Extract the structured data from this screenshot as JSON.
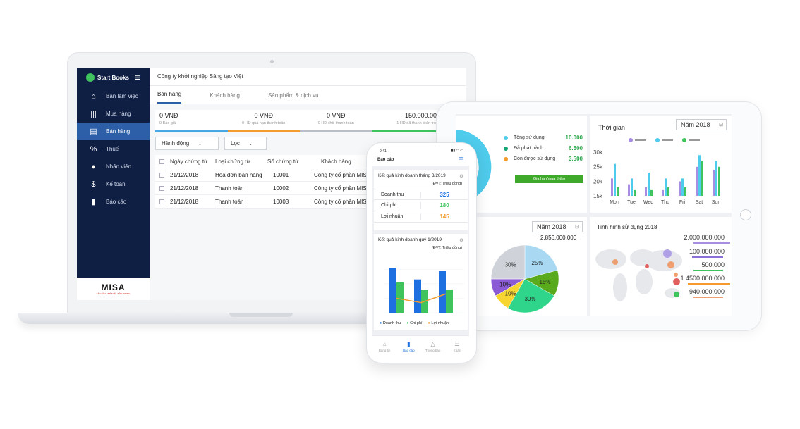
{
  "laptop": {
    "sidebar": {
      "brand": "Start Books",
      "items": [
        {
          "label": "Bàn làm việc",
          "icon": "home-icon"
        },
        {
          "label": "Mua hàng",
          "icon": "barcode-icon"
        },
        {
          "label": "Bán hàng",
          "icon": "invoice-icon",
          "active": true
        },
        {
          "label": "Thuế",
          "icon": "percent-icon"
        },
        {
          "label": "Nhân viên",
          "icon": "person-icon"
        },
        {
          "label": "Kế toán",
          "icon": "dollar-doc-icon"
        },
        {
          "label": "Báo cáo",
          "icon": "bar-chart-icon"
        }
      ],
      "footer_logo": "MISA",
      "footer_tagline": "TẬN TÂM · TRÍ TUỆ · TÔN TRỌNG"
    },
    "company": "Công ty khởi nghiệp Sáng tạo Việt",
    "tabs": [
      "Bán hàng",
      "Khách hàng",
      "Sản phẩm & dịch vụ"
    ],
    "stats": [
      {
        "value": "0 VNĐ",
        "label": "0 Báo giá",
        "color": "#47a8e5"
      },
      {
        "value": "0 VNĐ",
        "label": "0 HĐ quá hạn thanh toán",
        "color": "#f39b2e"
      },
      {
        "value": "0 VNĐ",
        "label": "0 HĐ chờ thanh toán",
        "color": "#b9bec7"
      },
      {
        "value": "150.000.000",
        "label": "1 HĐ đã thanh toán trong",
        "color": "#3ec35d"
      }
    ],
    "toolbar": {
      "action": "Hành động",
      "filter": "Lọc"
    },
    "table": {
      "headers": [
        "Ngày chứng từ",
        "Loại chứng từ",
        "Số chứng từ",
        "Khách hàng"
      ],
      "rows": [
        [
          "21/12/2018",
          "Hóa đơn bán hàng",
          "10001",
          "Công ty cổ phần MISA"
        ],
        [
          "21/12/2018",
          "Thanh toán",
          "10002",
          "Công ty cổ phần MISA"
        ],
        [
          "21/12/2018",
          "Thanh toán",
          "10003",
          "Công ty cổ phần MISA"
        ]
      ]
    }
  },
  "tablet": {
    "usage": {
      "items": [
        {
          "label": "Tổng sử dụng:",
          "value": "10.000",
          "color": "#4fcbeb"
        },
        {
          "label": "Đã phát hành:",
          "value": "6.500",
          "color": "#17a673"
        },
        {
          "label": "Còn được sử dụng",
          "value": "3.500",
          "color": "#f39b2e"
        }
      ],
      "button": "Gia hạn/mua thêm"
    },
    "time": {
      "title": "Thời gian",
      "year_select": "Năm 2018",
      "yticks": [
        "30k",
        "25k",
        "20k",
        "15k"
      ],
      "days": [
        "Mon",
        "Tue",
        "Wed",
        "Thu",
        "Fri",
        "Sat",
        "Sun"
      ]
    },
    "pie": {
      "year_select": "Năm 2018",
      "total": "2.856.000.000",
      "slices": [
        {
          "label": "25%",
          "value": 25,
          "color": "#a8d8f2"
        },
        {
          "label": "15%",
          "value": 15,
          "color": "#5aaa1e"
        },
        {
          "label": "30%",
          "value": 30,
          "color": "#2fd58a"
        },
        {
          "label": "10%",
          "value": 10,
          "color": "#f7d631"
        },
        {
          "label": "10%",
          "value": 10,
          "color": "#8b5bd6"
        },
        {
          "label": "30%",
          "value": 30,
          "color": "#cfd3d9"
        }
      ]
    },
    "map": {
      "title": "Tình hình sử dụng 2018",
      "values": [
        {
          "label": "2.000.000.000",
          "color": "#a88ee0"
        },
        {
          "label": "100.000.000",
          "color": "#8c6fd8"
        },
        {
          "label": "500.000",
          "color": "#3ec35d"
        },
        {
          "label": "1.4500.000.000",
          "color": "#f39b2e"
        },
        {
          "label": "940.000.000",
          "color": "#f0a070"
        }
      ]
    }
  },
  "phone": {
    "time": "9:41",
    "title": "Báo cáo",
    "month_card": {
      "title": "Kết quả kinh doanh tháng 3/2019",
      "unit": "(ĐVT: Triệu đồng)",
      "rows": [
        {
          "label": "Doanh thu",
          "value": "325",
          "color": "#1e6fe0"
        },
        {
          "label": "Chi phí",
          "value": "180",
          "color": "#3ec35d"
        },
        {
          "label": "Lợi nhuận",
          "value": "145",
          "color": "#f39b2e"
        }
      ]
    },
    "quarter_card": {
      "title": "Kết quả kinh doanh quý 1/2019",
      "unit": "(ĐVT: Triệu đồng)",
      "legend": [
        "Doanh thu",
        "Chi phí",
        "Lợi nhuận"
      ]
    },
    "nav": [
      "Bảng tin",
      "Báo cáo",
      "Thông báo",
      "Khác"
    ]
  },
  "chart_data": [
    {
      "type": "bar",
      "categories": [
        "Mon",
        "Tue",
        "Wed",
        "Thu",
        "Fri",
        "Sat",
        "Sun"
      ],
      "ylim": [
        15,
        30
      ],
      "series": [
        {
          "values": [
            20,
            18,
            17,
            16,
            19,
            24,
            23
          ]
        },
        {
          "values": [
            25,
            20,
            22,
            20,
            20,
            28,
            26
          ]
        },
        {
          "values": [
            17,
            16,
            16,
            17,
            17,
            26,
            24
          ]
        }
      ]
    },
    {
      "type": "pie",
      "values": [
        25,
        15,
        30,
        10,
        10,
        30
      ],
      "labels": [
        "25%",
        "15%",
        "30%",
        "10%",
        "10%",
        "30%"
      ]
    },
    {
      "type": "bar",
      "series": [
        {
          "name": "Doanh thu",
          "values": [
            310,
            230,
            290
          ]
        },
        {
          "name": "Chi phí",
          "values": [
            210,
            160,
            160
          ]
        },
        {
          "name": "Lợi nhuận",
          "values": [
            100,
            70,
            130
          ]
        }
      ]
    }
  ]
}
